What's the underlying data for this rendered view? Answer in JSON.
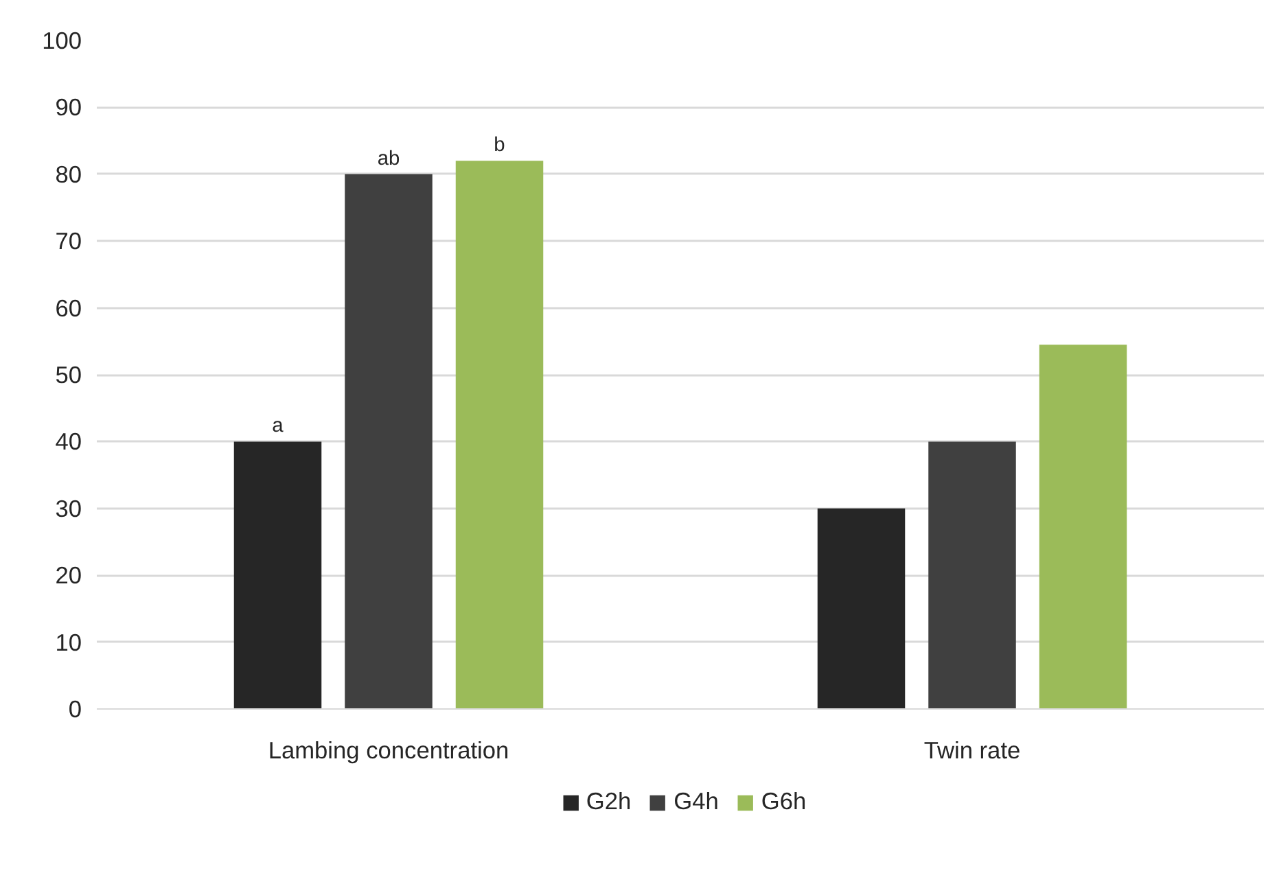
{
  "chart_data": {
    "type": "bar",
    "categories": [
      "Lambing concentration",
      "Twin rate"
    ],
    "series": [
      {
        "name": "G2h",
        "color": "#262626",
        "values": [
          40,
          30
        ],
        "value_labels": [
          "a",
          null
        ]
      },
      {
        "name": "G4h",
        "color": "#404040",
        "values": [
          80,
          40
        ],
        "value_labels": [
          "ab",
          null
        ]
      },
      {
        "name": "G6h",
        "color": "#9bbb59",
        "values": [
          82,
          54.5
        ],
        "value_labels": [
          "b",
          null
        ]
      }
    ],
    "ylim": [
      0,
      100
    ],
    "yticks": [
      0,
      10,
      20,
      30,
      40,
      50,
      60,
      70,
      80,
      90,
      100
    ],
    "grid": "y",
    "legend": "bottom"
  }
}
